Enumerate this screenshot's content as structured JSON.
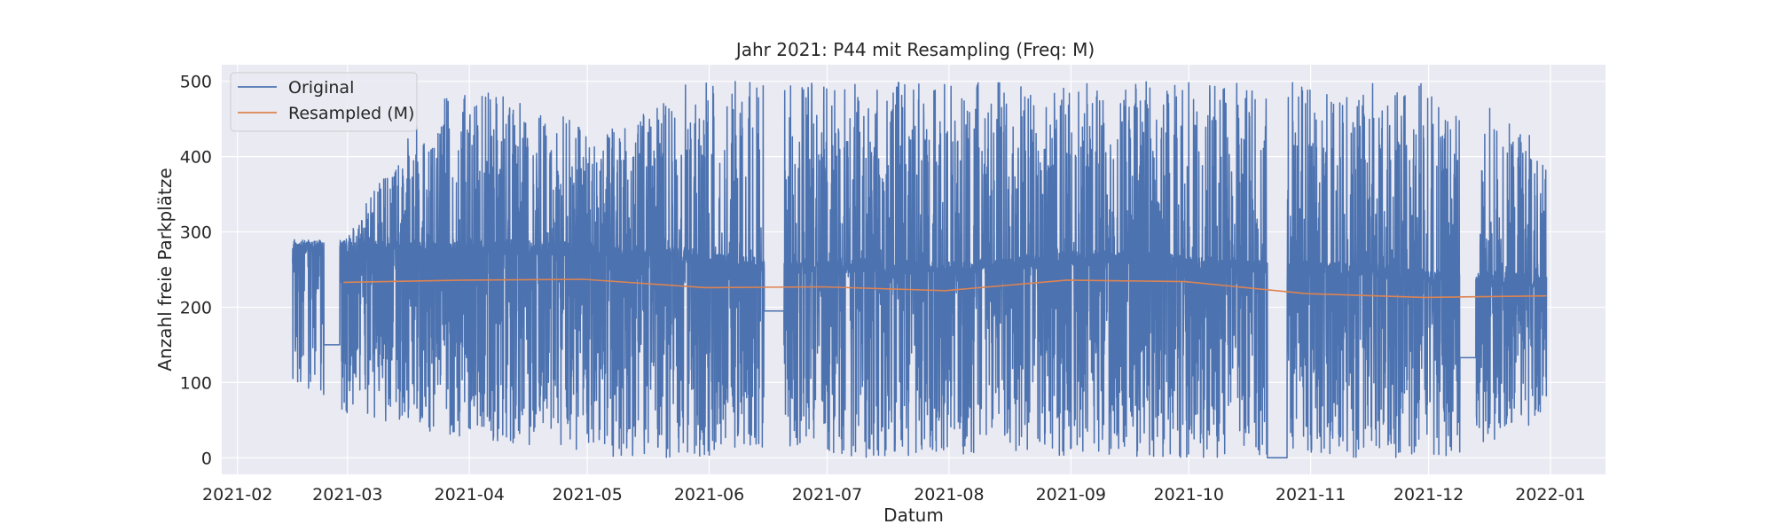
{
  "chart_data": {
    "type": "line",
    "title": "Jahr 2021: P44 mit Resampling (Freq: M)",
    "xlabel": "Datum",
    "ylabel": "Anzahl freie Parkplätze",
    "xlim": [
      "2021-01-28",
      "2022-01-15"
    ],
    "ylim": [
      -22,
      522
    ],
    "x_ticks": [
      "2021-02",
      "2021-03",
      "2021-04",
      "2021-05",
      "2021-06",
      "2021-07",
      "2021-08",
      "2021-09",
      "2021-10",
      "2021-11",
      "2021-12",
      "2022-01"
    ],
    "y_ticks": [
      0,
      100,
      200,
      300,
      400,
      500
    ],
    "grid": true,
    "legend_position": "top-left",
    "colors": {
      "original": "#4c72b0",
      "resampled": "#dd8452",
      "plot_bg": "#eaeaf2",
      "grid": "#ffffff"
    },
    "series": [
      {
        "name": "Original",
        "kind": "dense-oscillation",
        "x_range": [
          "2021-02-15",
          "2021-12-31"
        ],
        "envelope": [
          {
            "x": "2021-02-15",
            "low": 105,
            "high": 285,
            "base": 280
          },
          {
            "x": "2021-02-28",
            "low": 60,
            "high": 290,
            "base": 278
          },
          {
            "x": "2021-03-23",
            "low": 30,
            "high": 480,
            "base": 278
          },
          {
            "x": "2021-04-10",
            "low": 20,
            "high": 490,
            "base": 280
          },
          {
            "x": "2021-05-05",
            "low": 0,
            "high": 430,
            "base": 275
          },
          {
            "x": "2021-05-25",
            "low": 0,
            "high": 500,
            "base": 270
          },
          {
            "x": "2021-06-15",
            "low": 10,
            "high": 500,
            "base": 255
          },
          {
            "x": "2021-07-10",
            "low": 0,
            "high": 500,
            "base": 255
          },
          {
            "x": "2021-08-01",
            "low": 5,
            "high": 500,
            "base": 250
          },
          {
            "x": "2021-08-31",
            "low": 0,
            "high": 500,
            "base": 265
          },
          {
            "x": "2021-09-20",
            "low": 0,
            "high": 500,
            "base": 265
          },
          {
            "x": "2021-10-15",
            "low": 0,
            "high": 500,
            "base": 255
          },
          {
            "x": "2021-11-10",
            "low": 0,
            "high": 500,
            "base": 250
          },
          {
            "x": "2021-12-05",
            "low": 0,
            "high": 500,
            "base": 240
          },
          {
            "x": "2021-12-31",
            "low": 50,
            "high": 420,
            "base": 235
          }
        ],
        "gaps": [
          {
            "from": "2021-02-23",
            "to": "2021-02-27",
            "value": 150
          },
          {
            "from": "2021-06-15",
            "to": "2021-06-20",
            "value": 195
          },
          {
            "from": "2021-10-21",
            "to": "2021-10-26",
            "value": 0
          },
          {
            "from": "2021-12-09",
            "to": "2021-12-13",
            "value": 133
          }
        ]
      },
      {
        "name": "Resampled (M)",
        "x": [
          "2021-02-28",
          "2021-03-31",
          "2021-04-30",
          "2021-05-31",
          "2021-06-30",
          "2021-07-31",
          "2021-08-31",
          "2021-09-30",
          "2021-10-31",
          "2021-11-30",
          "2021-12-31"
        ],
        "y": [
          233,
          236,
          237,
          226,
          227,
          222,
          236,
          234,
          218,
          213,
          215
        ]
      }
    ]
  }
}
